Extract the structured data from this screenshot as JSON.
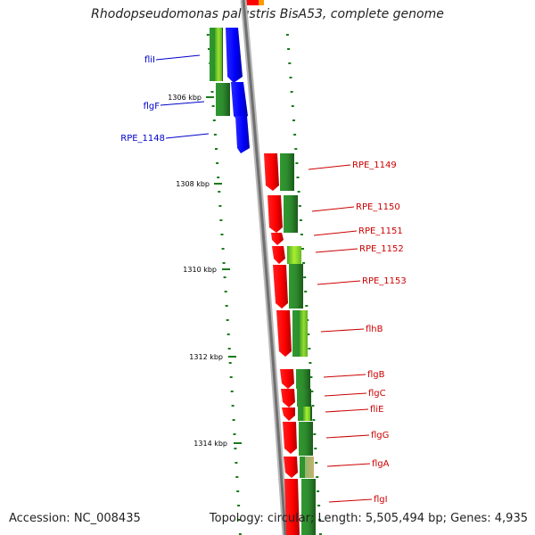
{
  "title": "Rhodopseudomonas palustris BisA53, complete genome",
  "accession": "Accession: NC_008435",
  "topology": "Topology: circular; Length: 5,505,494 bp; Genes: 4,935",
  "kbp_labels": [
    "1306 kbp",
    "1308 kbp",
    "1310 kbp",
    "1312 kbp",
    "1314 kbp"
  ],
  "gene_labels": [
    {
      "text": "fliI",
      "color": "#0000cc"
    },
    {
      "text": "flgF",
      "color": "#0000cc"
    },
    {
      "text": "RPE_1148",
      "color": "#0000cc"
    },
    {
      "text": "RPE_1149",
      "color": "#cc0000"
    },
    {
      "text": "RPE_1150",
      "color": "#cc0000"
    },
    {
      "text": "RPE_1151",
      "color": "#cc0000"
    },
    {
      "text": "RPE_1152",
      "color": "#cc0000"
    },
    {
      "text": "RPE_1153",
      "color": "#cc0000"
    },
    {
      "text": "flhB",
      "color": "#cc0000"
    },
    {
      "text": "flgB",
      "color": "#cc0000"
    },
    {
      "text": "flgC",
      "color": "#cc0000"
    },
    {
      "text": "fliE",
      "color": "#cc0000"
    },
    {
      "text": "flgG",
      "color": "#cc0000"
    },
    {
      "text": "flgA",
      "color": "#cc0000"
    },
    {
      "text": "flgI",
      "color": "#cc0000"
    }
  ],
  "colors": {
    "forward_strand": "#0000ff",
    "reverse_strand": "#ff0000",
    "cog_green": "#2e8b2e",
    "cog_lightgreen": "#99dd33",
    "backbone": "#808080",
    "tick": "#1a7a1a"
  }
}
